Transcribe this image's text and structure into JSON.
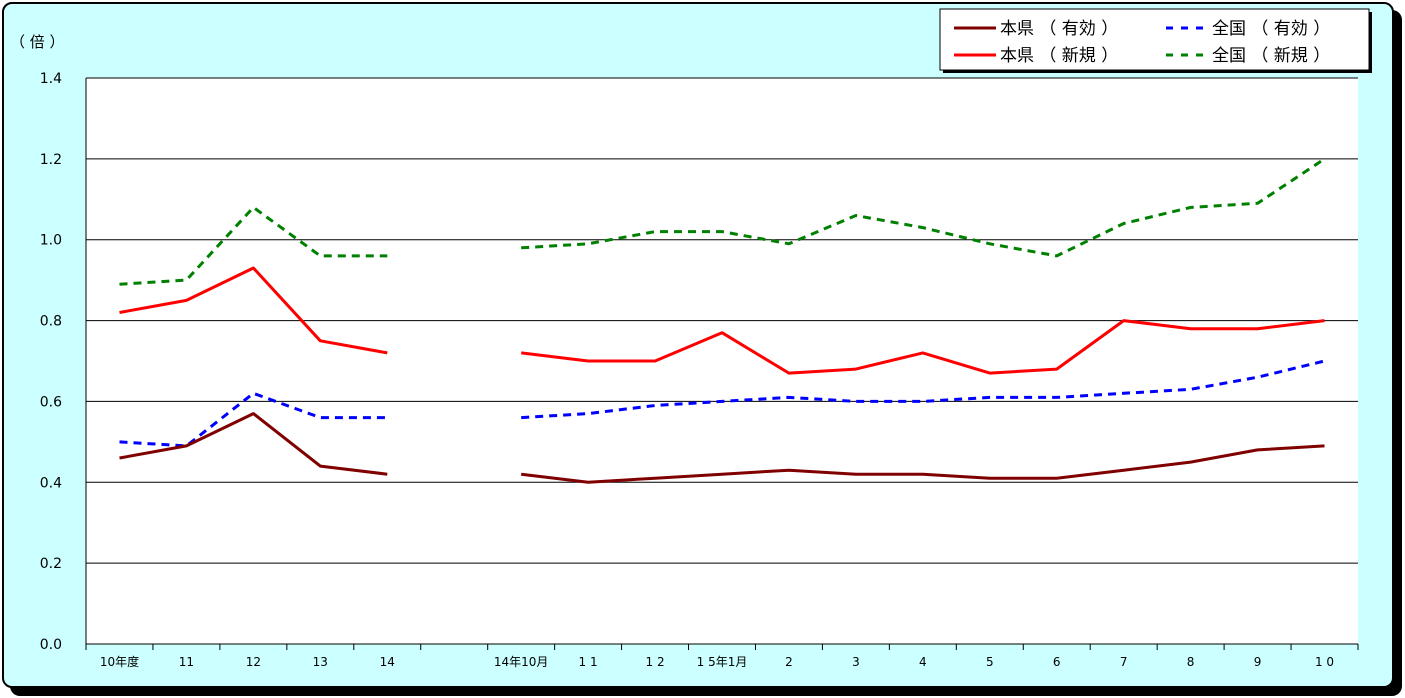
{
  "chart_data": {
    "type": "line",
    "y_unit": "（ 倍 ）",
    "ylim": [
      0,
      1.4
    ],
    "yticks": [
      "0.0",
      "0.2",
      "0.4",
      "0.6",
      "0.8",
      "1.0",
      "1.2",
      "1.4"
    ],
    "categories": [
      "10年度",
      "11",
      "12",
      "13",
      "14",
      "",
      "14年10月",
      "1 1",
      "1 2",
      "1 5年1月",
      "2",
      "3",
      "4",
      "5",
      "6",
      "7",
      "8",
      "9",
      "1 0"
    ],
    "series": [
      {
        "name": "本県 （ 有効 ）",
        "color": "#800000",
        "dash": "solid",
        "values": [
          0.46,
          0.49,
          0.57,
          0.44,
          0.42,
          null,
          0.42,
          0.4,
          0.41,
          0.42,
          0.43,
          0.42,
          0.42,
          0.41,
          0.41,
          0.43,
          0.45,
          0.48,
          0.49
        ]
      },
      {
        "name": "全国 （ 有効 ）",
        "color": "#0000ff",
        "dash": "dashed",
        "values": [
          0.5,
          0.49,
          0.62,
          0.56,
          0.56,
          null,
          0.56,
          0.57,
          0.59,
          0.6,
          0.61,
          0.6,
          0.6,
          0.61,
          0.61,
          0.62,
          0.63,
          0.66,
          0.7
        ]
      },
      {
        "name": "本県 （ 新規 ）",
        "color": "#ff0000",
        "dash": "solid",
        "values": [
          0.82,
          0.85,
          0.93,
          0.75,
          0.72,
          null,
          0.72,
          0.7,
          0.7,
          0.77,
          0.67,
          0.68,
          0.72,
          0.67,
          0.68,
          0.8,
          0.78,
          0.78,
          0.8
        ]
      },
      {
        "name": "全国 （ 新規 ）",
        "color": "#008000",
        "dash": "dashed",
        "values": [
          0.89,
          0.9,
          1.08,
          0.96,
          0.96,
          null,
          0.98,
          0.99,
          1.02,
          1.02,
          0.99,
          1.06,
          1.03,
          0.99,
          0.96,
          1.04,
          1.08,
          1.09,
          1.2
        ]
      }
    ],
    "grid": true,
    "legend_position": "top-right"
  }
}
